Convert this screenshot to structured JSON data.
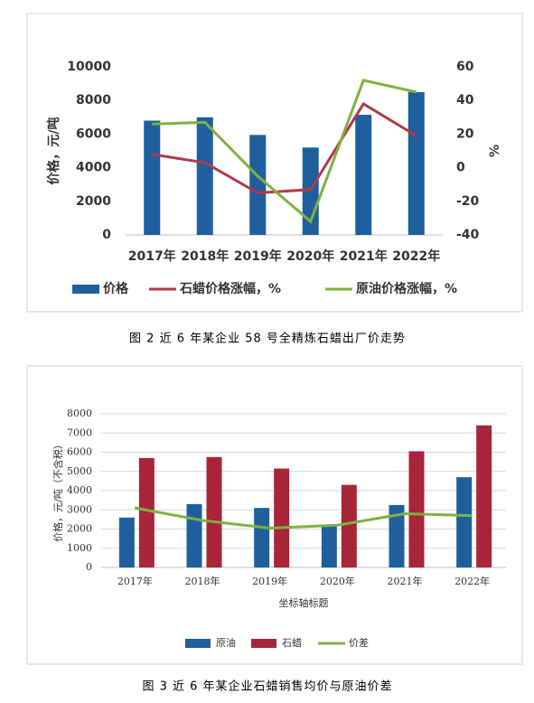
{
  "chart_data": [
    {
      "type": "bar",
      "caption": "图 2  近 6 年某企业 58 号全精炼石蜡出厂价走势",
      "ylabel": "价格，元/吨",
      "y2label": "%",
      "categories": [
        "2017年",
        "2018年",
        "2019年",
        "2020年",
        "2021年",
        "2022年"
      ],
      "ylim": [
        0,
        10000
      ],
      "yticks": [
        0,
        2000,
        4000,
        6000,
        8000,
        10000
      ],
      "y2lim": [
        -40,
        60
      ],
      "y2ticks": [
        -40,
        -20,
        0,
        20,
        40,
        60
      ],
      "grid": false,
      "series": [
        {
          "name": "价格",
          "type": "bar",
          "color": "#1f5f9e",
          "values": [
            6800,
            7000,
            5950,
            5200,
            7150,
            8500
          ]
        },
        {
          "name": "石蜡价格涨幅，%",
          "type": "line",
          "axis": "y2",
          "color": "#b03a48",
          "values": [
            8,
            3,
            -15,
            -13,
            38,
            19
          ]
        },
        {
          "name": "原油价格涨幅，%",
          "type": "line",
          "axis": "y2",
          "color": "#7fb241",
          "values": [
            26,
            27,
            -5,
            -32,
            52,
            45
          ]
        }
      ]
    },
    {
      "type": "bar",
      "caption": "图 3  近 6 年某企业石蜡销售均价与原油价差",
      "ylabel": "价格，元/吨（不含税）",
      "xlabel": "坐标轴标题",
      "categories": [
        "2017年",
        "2018年",
        "2019年",
        "2020年",
        "2021年",
        "2022年"
      ],
      "ylim": [
        0,
        8000
      ],
      "yticks": [
        0,
        1000,
        2000,
        3000,
        4000,
        5000,
        6000,
        7000,
        8000
      ],
      "grid": true,
      "series": [
        {
          "name": "原油",
          "type": "bar",
          "color": "#1f5f9e",
          "values": [
            2600,
            3300,
            3100,
            2150,
            3250,
            4700
          ]
        },
        {
          "name": "石蜡",
          "type": "bar",
          "color": "#a8253a",
          "values": [
            5700,
            5750,
            5150,
            4300,
            6050,
            7400
          ]
        },
        {
          "name": "价差",
          "type": "line",
          "color": "#7fb241",
          "values": [
            3100,
            2450,
            2050,
            2200,
            2800,
            2700
          ]
        }
      ]
    }
  ]
}
